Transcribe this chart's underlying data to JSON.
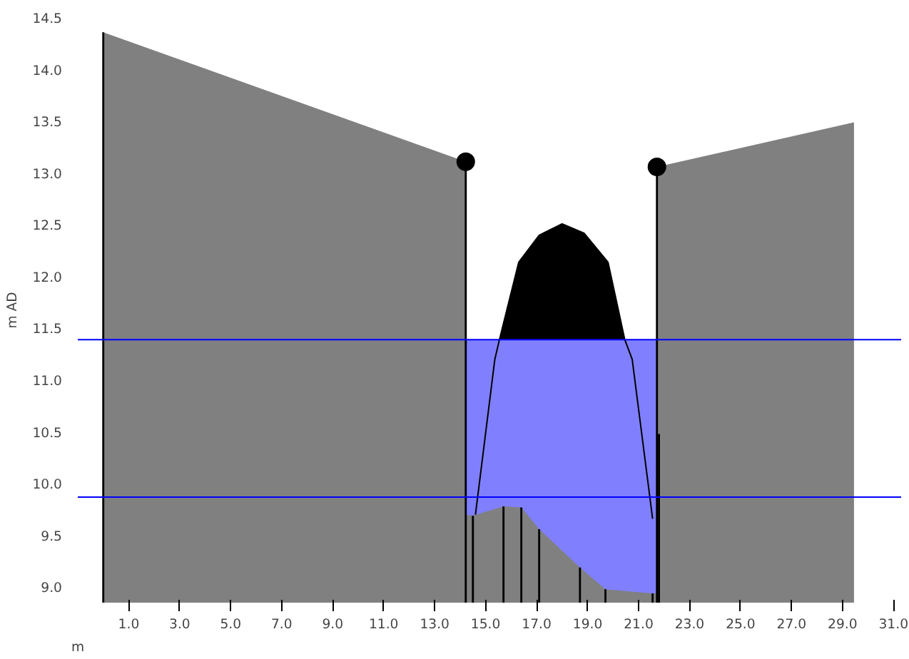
{
  "chart_data": {
    "type": "area",
    "xlabel": "m",
    "ylabel": "m AD",
    "xlim": [
      -1.0,
      31.3
    ],
    "ylim": [
      8.85,
      14.5
    ],
    "xticks": [
      {
        "value": 1,
        "label": "1.0"
      },
      {
        "value": 3,
        "label": "3.0"
      },
      {
        "value": 5,
        "label": "5.0"
      },
      {
        "value": 7,
        "label": "7.0"
      },
      {
        "value": 9,
        "label": "9.0"
      },
      {
        "value": 11,
        "label": "11.0"
      },
      {
        "value": 13,
        "label": "13.0"
      },
      {
        "value": 15,
        "label": "15.0"
      },
      {
        "value": 17,
        "label": "17.0"
      },
      {
        "value": 19,
        "label": "19.0"
      },
      {
        "value": 21,
        "label": "21.0"
      },
      {
        "value": 23,
        "label": "23.0"
      },
      {
        "value": 25,
        "label": "25.0"
      },
      {
        "value": 27,
        "label": "27.0"
      },
      {
        "value": 29,
        "label": "29.0"
      },
      {
        "value": 31,
        "label": "31.0"
      }
    ],
    "yticks": [
      {
        "value": 9,
        "label": "9.0"
      },
      9.5,
      {
        "value": 10,
        "label": "10.0"
      },
      10.5,
      {
        "value": 11,
        "label": "11.0"
      },
      11.5,
      {
        "value": 12,
        "label": "12.0"
      },
      12.5,
      {
        "value": 13,
        "label": "13.0"
      },
      13.5,
      {
        "value": 14,
        "label": "14.0"
      },
      14.5
    ],
    "grid": false,
    "series": [
      {
        "color": "#000000",
        "x": [
          15.54,
          16.3,
          17.1,
          18.0,
          18.86,
          19.8,
          20.46
        ],
        "values": [
          11.39,
          12.14,
          12.4,
          12.51,
          12.42,
          12.14,
          11.39
        ]
      },
      {
        "color": "#8080ff",
        "x": [
          14.22,
          21.72
        ],
        "values": [
          11.39,
          11.39
        ]
      },
      {
        "color": "#808080",
        "x": [
          0,
          14.22,
          14.22,
          14.5,
          15.7,
          16.4,
          17.1,
          18.7,
          19.7,
          21.55,
          21.72,
          21.72,
          29.45
        ],
        "values": [
          14.36,
          13.11,
          9.7,
          9.69,
          9.78,
          9.77,
          9.56,
          9.19,
          8.98,
          8.94,
          8.94,
          13.06,
          13.49
        ]
      },
      {
        "type": "line",
        "color": "#000000",
        "x": [
          14.6,
          15.36,
          15.54,
          16.3,
          17.1,
          18.0,
          18.86,
          19.8,
          20.46,
          20.75,
          21.55
        ],
        "values": [
          9.7,
          11.2,
          11.39,
          12.14,
          12.4,
          12.51,
          12.42,
          12.14,
          11.39,
          11.2,
          9.66
        ]
      },
      {
        "type": "bar",
        "color": "#000000",
        "x": [
          0,
          14.22,
          14.5,
          15.7,
          16.4,
          17.1,
          18.7,
          19.7,
          21.55,
          21.72,
          21.8
        ],
        "base": [
          8.85,
          8.85,
          8.85,
          8.85,
          8.85,
          8.85,
          8.85,
          8.85,
          8.85,
          8.85,
          8.85
        ],
        "values": [
          5.51,
          4.26,
          0.84,
          0.93,
          0.92,
          0.71,
          0.34,
          0.13,
          0.09,
          4.21,
          1.63
        ]
      },
      {
        "type": "scatter",
        "color": "#000000",
        "marker": "circle",
        "x": [
          14.22,
          21.72
        ],
        "values": [
          13.11,
          13.06
        ]
      }
    ],
    "ref_lines": [
      {
        "axis": "y",
        "value": 11.39,
        "color": "#0000ff"
      },
      {
        "axis": "y",
        "value": 9.87,
        "color": "#0000ff"
      }
    ]
  }
}
